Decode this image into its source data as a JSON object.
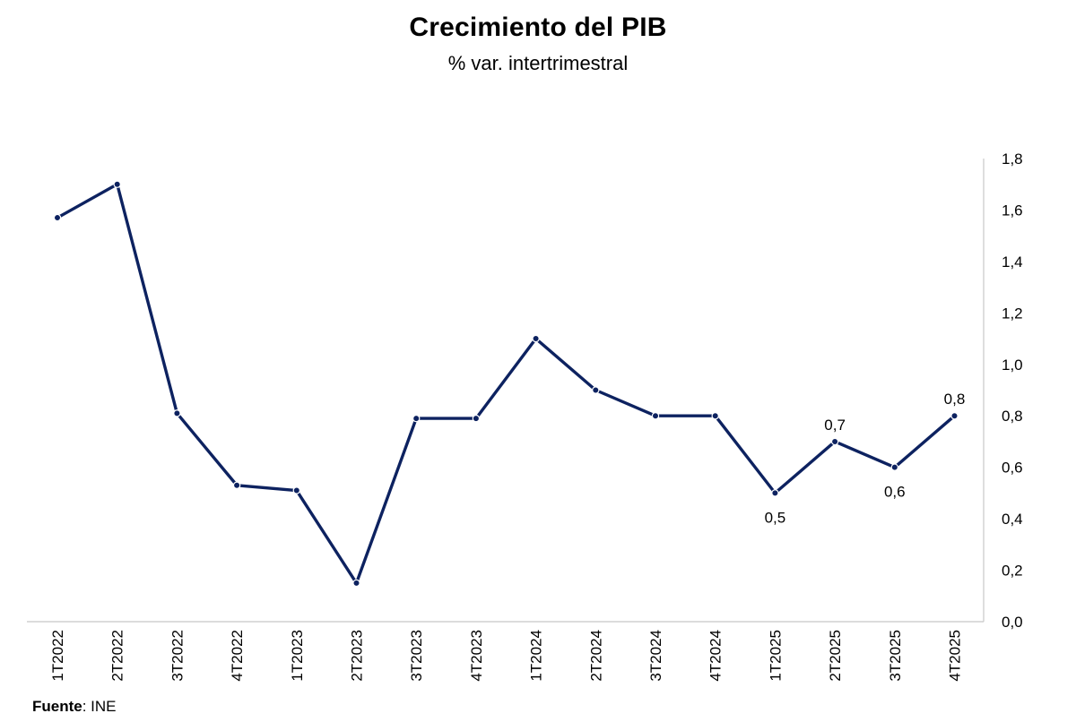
{
  "colors": {
    "line": "#0d2260",
    "axis": "#c8c8c8",
    "text": "#000000"
  },
  "chart_data": {
    "type": "line",
    "title": "Crecimiento del PIB",
    "subtitle": "% var. intertrimestral",
    "categories": [
      "1T2022",
      "2T2022",
      "3T2022",
      "4T2022",
      "1T2023",
      "2T2023",
      "3T2023",
      "4T2023",
      "1T2024",
      "2T2024",
      "3T2024",
      "4T2024",
      "1T2025",
      "2T2025",
      "3T2025",
      "4T2025"
    ],
    "series": [
      {
        "values": [
          1.57,
          1.7,
          0.81,
          0.53,
          0.51,
          0.15,
          0.79,
          0.79,
          1.1,
          0.9,
          0.8,
          0.8,
          0.5,
          0.7,
          0.6,
          0.8
        ]
      }
    ],
    "data_labels": [
      {
        "index": 12,
        "text": "0,5",
        "position": "below"
      },
      {
        "index": 13,
        "text": "0,7",
        "position": "above"
      },
      {
        "index": 14,
        "text": "0,6",
        "position": "below"
      },
      {
        "index": 15,
        "text": "0,8",
        "position": "above"
      }
    ],
    "yticks": [
      "0,0",
      "0,2",
      "0,4",
      "0,6",
      "0,8",
      "1,0",
      "1,2",
      "1,4",
      "1,6",
      "1,8"
    ],
    "ylim": [
      0,
      1.8
    ],
    "y_axis_side": "right",
    "grid": false,
    "legend": "none"
  },
  "source": {
    "label": "Fuente",
    "text": ": INE"
  }
}
